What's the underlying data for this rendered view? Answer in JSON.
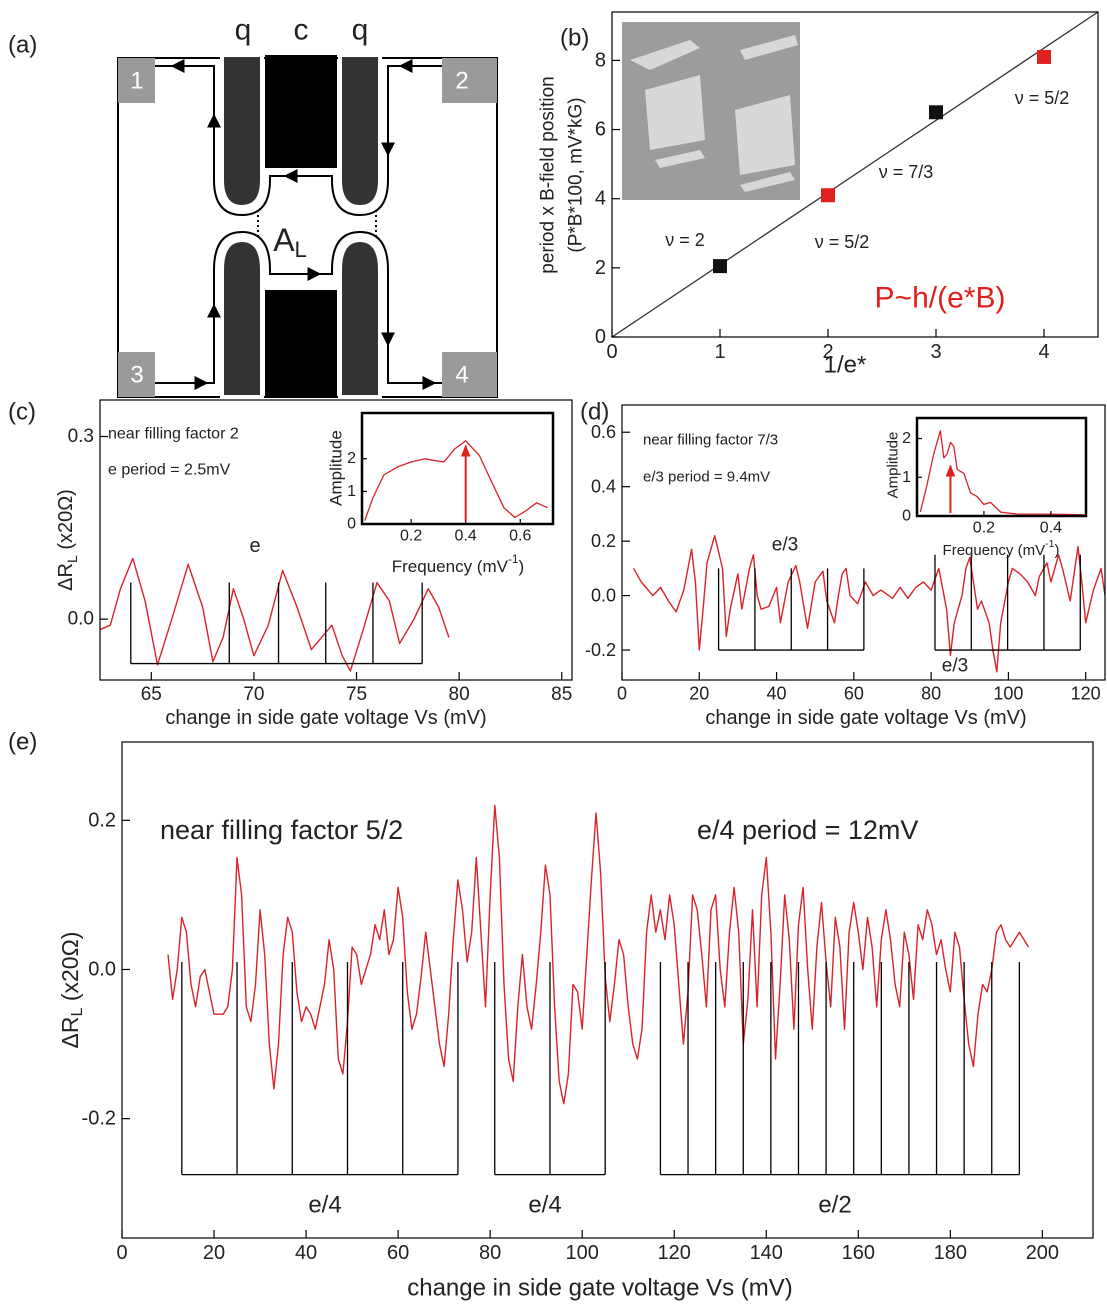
{
  "diagram": {
    "panel": "(a)",
    "labels": [
      "q",
      "c",
      "q"
    ],
    "contacts": [
      "1",
      "2",
      "3",
      "4"
    ],
    "region": {
      "main": "A",
      "sub": "L"
    }
  },
  "chart_data": [
    {
      "type": "scatter",
      "panel": "(b)",
      "xlabel": "1/e*",
      "ylabel": [
        "period x B-field position",
        "(P*B*100, mV*kG)"
      ],
      "x": [
        1,
        2,
        3,
        4
      ],
      "values": [
        2.05,
        4.1,
        6.5,
        8.1
      ],
      "point_colors": [
        "#111111",
        "#e0201c",
        "#111111",
        "#e0201c"
      ],
      "point_labels": [
        "ν = 2",
        "ν = 5/2",
        "ν = 7/3",
        "ν = 5/2"
      ],
      "fit": {
        "x": [
          0,
          4.5
        ],
        "values": [
          0,
          9.4
        ],
        "color": "#333333"
      },
      "notes": [
        "P~h/(e*B)"
      ],
      "note_color": "#e0201c",
      "xlim": [
        0,
        4.5
      ],
      "ylim": [
        0,
        9.4
      ],
      "xticks": [
        0,
        1,
        2,
        3,
        4
      ],
      "yticks": [
        0,
        2,
        4,
        6,
        8
      ]
    },
    {
      "type": "line",
      "panel": "(c)",
      "xlabel": "change in side gate voltage Vs (mV)",
      "ylabel": {
        "main": "ΔR",
        "sub": "L",
        "rest": " (x20Ω)"
      },
      "notes": [
        "near filling factor 2",
        "e period = 2.5mV"
      ],
      "x": [
        62.3,
        63.0,
        63.5,
        64.1,
        64.7,
        65.3,
        66.0,
        66.8,
        67.5,
        68.0,
        68.5,
        69.0,
        69.5,
        70.0,
        70.7,
        71.4,
        72.1,
        72.8,
        73.3,
        73.8,
        74.3,
        74.7,
        75.3,
        76.0,
        76.6,
        77.1,
        77.8,
        78.5,
        79.0,
        79.5
      ],
      "series": [
        {
          "color": "#d8232a",
          "values": [
            -0.02,
            -0.01,
            0.05,
            0.1,
            0.03,
            -0.075,
            0.0,
            0.09,
            0.02,
            -0.07,
            -0.03,
            0.05,
            0.0,
            -0.06,
            -0.01,
            0.08,
            0.02,
            -0.05,
            -0.03,
            -0.01,
            -0.06,
            -0.085,
            -0.02,
            0.06,
            0.03,
            -0.04,
            0.0,
            0.05,
            0.02,
            -0.03
          ]
        }
      ],
      "groups": [
        {
          "label": "e",
          "positions": [
            64.0,
            68.8,
            71.2,
            73.5,
            75.8,
            78.2
          ],
          "bottom": -0.073,
          "top": 0.06
        }
      ],
      "xlim": [
        62.5,
        85.5
      ],
      "ylim": [
        -0.1,
        0.36
      ],
      "xticks": [
        65,
        70,
        75,
        80,
        85
      ],
      "yticks": [
        {
          "value": 0,
          "label": "0.0"
        },
        0.3
      ]
    },
    {
      "type": "line",
      "xlabel": {
        "main": "Frequency (mV",
        "sup": "-1",
        "rest": ")"
      },
      "ylabel": "Amplitude",
      "x": [
        0.03,
        0.06,
        0.1,
        0.15,
        0.2,
        0.25,
        0.28,
        0.32,
        0.36,
        0.4,
        0.45,
        0.5,
        0.54,
        0.58,
        0.62,
        0.66,
        0.7
      ],
      "series": [
        {
          "color": "#d8232a",
          "values": [
            0.1,
            0.8,
            1.5,
            1.75,
            1.9,
            2.0,
            1.95,
            1.9,
            2.3,
            2.55,
            2.1,
            1.2,
            0.5,
            0.2,
            0.4,
            0.65,
            0.5
          ]
        }
      ],
      "arrow": [
        0.4,
        2.4
      ],
      "arrow_color": "#e0201c",
      "xlim": [
        0.02,
        0.72
      ],
      "ylim": [
        0,
        3.4
      ],
      "xticks": [
        0.2,
        0.4,
        0.6
      ],
      "yticks": [
        0,
        1,
        2
      ]
    },
    {
      "type": "line",
      "panel": "(d)",
      "xlabel": "change in side gate voltage Vs (mV)",
      "notes": [
        "near filling factor 7/3",
        "e/3 period = 9.4mV"
      ],
      "x": [
        3,
        5,
        8,
        10,
        12,
        14,
        16,
        18,
        19,
        20,
        21,
        22,
        24,
        26,
        27,
        28,
        30,
        31,
        33,
        34,
        35,
        36,
        38,
        40,
        41,
        43,
        45,
        46,
        48,
        50,
        52,
        53,
        55,
        56,
        57,
        58,
        59,
        61,
        63,
        65,
        67,
        70,
        72,
        74,
        76,
        78,
        80,
        82,
        84,
        85,
        86,
        88,
        89,
        90,
        92,
        93,
        95,
        96,
        97,
        98,
        100,
        101,
        103,
        105,
        107,
        108,
        110,
        111,
        113,
        114,
        116,
        118,
        119,
        120,
        122,
        124,
        125
      ],
      "series": [
        {
          "color": "#d8232a",
          "values": [
            0.1,
            0.05,
            0.0,
            0.03,
            -0.02,
            -0.06,
            0.02,
            0.17,
            0.05,
            -0.2,
            -0.05,
            0.12,
            0.22,
            0.1,
            -0.15,
            -0.05,
            0.08,
            -0.05,
            0.1,
            0.15,
            0.0,
            -0.05,
            -0.04,
            0.03,
            -0.1,
            0.05,
            0.11,
            0.05,
            -0.12,
            0.05,
            0.09,
            -0.02,
            -0.1,
            0.0,
            0.08,
            0.1,
            0.0,
            -0.03,
            0.05,
            0.0,
            0.02,
            -0.01,
            0.03,
            -0.01,
            0.03,
            0.05,
            0.02,
            0.1,
            -0.05,
            -0.22,
            -0.1,
            0.0,
            0.1,
            0.14,
            -0.05,
            -0.02,
            -0.1,
            -0.2,
            -0.28,
            -0.1,
            0.05,
            0.1,
            0.08,
            0.05,
            0.0,
            0.07,
            0.12,
            0.05,
            0.15,
            0.1,
            -0.02,
            0.18,
            0.05,
            -0.1,
            0.02,
            0.1,
            0.0
          ]
        }
      ],
      "groups": [
        {
          "label": "e/3",
          "positions": [
            25,
            34.4,
            43.8,
            53.2,
            62.6
          ],
          "bottom": -0.2,
          "top": 0.1
        },
        {
          "label": "e/3",
          "positions": [
            81,
            90.4,
            99.8,
            109.2,
            118.6
          ],
          "bottom": -0.2,
          "top": 0.15
        }
      ],
      "xlim": [
        0,
        125
      ],
      "ylim": [
        -0.31,
        0.7
      ],
      "xticks": [
        0,
        20,
        40,
        60,
        80,
        100,
        120
      ],
      "yticks": [
        -0.2,
        {
          "value": 0,
          "label": "0.0"
        },
        0.2,
        0.4,
        0.6
      ]
    },
    {
      "type": "line",
      "xlabel": {
        "main": "Frequency (mV",
        "sup": "-1",
        "rest": ")"
      },
      "ylabel": "Amplitude",
      "x": [
        0.01,
        0.03,
        0.05,
        0.07,
        0.08,
        0.09,
        0.1,
        0.11,
        0.12,
        0.14,
        0.16,
        0.18,
        0.2,
        0.22,
        0.25,
        0.3,
        0.4,
        0.5
      ],
      "series": [
        {
          "color": "#d8232a",
          "values": [
            0.1,
            0.8,
            1.6,
            2.2,
            1.5,
            1.6,
            1.9,
            1.8,
            1.2,
            1.1,
            0.6,
            0.5,
            0.3,
            0.35,
            0.1,
            0.05,
            0.05,
            0.03
          ]
        }
      ],
      "arrow": [
        0.1,
        1.3
      ],
      "arrow_color": "#e0201c",
      "xlim": [
        0,
        0.505
      ],
      "ylim": [
        0,
        2.53
      ],
      "xticks": [
        0.2,
        0.4
      ],
      "yticks": [
        0,
        1,
        2
      ]
    },
    {
      "type": "line",
      "panel": "(e)",
      "xlabel": "change in side gate voltage Vs (mV)",
      "ylabel": {
        "main": "ΔR",
        "sub": "L",
        "rest": " (x20Ω)"
      },
      "notes": [
        "near filling factor 5/2",
        "e/4 period = 12mV"
      ],
      "x": [
        10,
        11,
        12,
        13,
        14,
        15,
        16,
        17,
        18,
        19,
        20,
        21,
        22,
        23,
        24,
        25,
        26,
        27,
        28,
        29,
        30,
        31,
        32,
        33,
        34,
        35,
        36,
        37,
        38,
        39,
        40,
        41,
        42,
        43,
        44,
        45,
        46,
        47,
        48,
        49,
        50,
        51,
        52,
        53,
        54,
        55,
        56,
        57,
        58,
        59,
        60,
        61,
        62,
        63,
        64,
        65,
        66,
        67,
        68,
        69,
        70,
        71,
        72,
        73,
        74,
        75,
        76,
        77,
        78,
        79,
        80,
        81,
        82,
        83,
        84,
        85,
        86,
        87,
        88,
        89,
        90,
        91,
        92,
        93,
        94,
        95,
        96,
        97,
        98,
        99,
        100,
        101,
        102,
        103,
        104,
        105,
        106,
        107,
        108,
        109,
        110,
        111,
        112,
        113,
        114,
        115,
        116,
        117,
        118,
        119,
        120,
        121,
        122,
        123,
        124,
        125,
        126,
        127,
        128,
        129,
        130,
        131,
        132,
        133,
        134,
        135,
        136,
        137,
        138,
        139,
        140,
        141,
        142,
        143,
        144,
        145,
        146,
        147,
        148,
        149,
        150,
        151,
        152,
        153,
        154,
        155,
        156,
        157,
        158,
        159,
        160,
        161,
        162,
        163,
        164,
        165,
        166,
        167,
        168,
        169,
        170,
        171,
        172,
        173,
        174,
        175,
        176,
        177,
        178,
        179,
        180,
        181,
        182,
        183,
        184,
        185,
        186,
        187,
        188,
        189,
        190,
        191,
        192,
        193,
        194,
        195,
        196,
        197
      ],
      "series": [
        {
          "color": "#d8232a",
          "values": [
            0.02,
            -0.04,
            0.0,
            0.07,
            0.05,
            -0.02,
            -0.05,
            -0.01,
            0.0,
            -0.03,
            -0.06,
            -0.06,
            -0.06,
            -0.05,
            0.0,
            0.15,
            0.1,
            -0.05,
            -0.07,
            -0.02,
            0.08,
            0.02,
            -0.1,
            -0.16,
            -0.1,
            0.02,
            0.07,
            0.05,
            -0.03,
            -0.07,
            -0.05,
            -0.06,
            -0.08,
            -0.05,
            -0.02,
            0.04,
            0.0,
            -0.12,
            -0.14,
            -0.07,
            0.03,
            0.02,
            -0.02,
            0.0,
            0.02,
            0.06,
            0.04,
            0.08,
            0.02,
            0.04,
            0.11,
            0.07,
            -0.03,
            -0.08,
            -0.06,
            -0.01,
            0.05,
            0.0,
            -0.05,
            -0.1,
            -0.13,
            -0.06,
            0.04,
            0.12,
            0.08,
            0.01,
            0.05,
            0.15,
            0.05,
            -0.05,
            0.1,
            0.22,
            0.15,
            -0.02,
            -0.12,
            -0.15,
            -0.05,
            0.02,
            -0.05,
            -0.08,
            -0.02,
            0.05,
            0.14,
            0.1,
            -0.05,
            -0.15,
            -0.18,
            -0.14,
            -0.02,
            -0.03,
            -0.08,
            0.02,
            0.12,
            0.21,
            0.13,
            -0.01,
            -0.07,
            -0.02,
            0.04,
            0.02,
            -0.05,
            -0.1,
            -0.12,
            -0.08,
            0.05,
            0.1,
            0.05,
            0.08,
            0.04,
            0.1,
            0.06,
            -0.02,
            -0.1,
            -0.03,
            0.1,
            0.08,
            0.02,
            -0.05,
            0.08,
            0.1,
            0.0,
            -0.05,
            0.05,
            0.11,
            0.05,
            -0.1,
            -0.04,
            0.08,
            -0.05,
            0.1,
            0.15,
            0.05,
            -0.12,
            -0.02,
            0.1,
            0.04,
            -0.08,
            0.06,
            0.11,
            0.0,
            -0.08,
            0.03,
            0.09,
            0.01,
            -0.05,
            0.07,
            0.03,
            -0.08,
            0.05,
            0.09,
            0.05,
            0.0,
            0.07,
            0.03,
            -0.05,
            0.04,
            0.08,
            0.04,
            -0.02,
            -0.05,
            0.05,
            0.02,
            -0.04,
            0.06,
            0.04,
            0.08,
            0.06,
            0.02,
            0.04,
            0.0,
            -0.03,
            0.05,
            0.03,
            -0.04,
            -0.1,
            -0.13,
            -0.06,
            -0.02,
            -0.03,
            0.0,
            0.05,
            0.06,
            0.04,
            0.03,
            0.04,
            0.05,
            0.04,
            0.03
          ]
        }
      ],
      "groups": [
        {
          "label": "e/4",
          "positions": [
            13,
            25,
            37,
            49,
            61,
            73
          ],
          "bottom": -0.275,
          "top": 0.01
        },
        {
          "label": "e/4",
          "positions": [
            81,
            93,
            105
          ],
          "bottom": -0.275,
          "top": 0.01
        },
        {
          "label": "e/2",
          "positions": [
            117,
            123,
            129,
            135,
            141,
            147,
            153,
            159,
            165,
            171,
            177,
            183,
            189,
            195
          ],
          "bottom": -0.275,
          "top": 0.01
        }
      ],
      "xlim": [
        0,
        211
      ],
      "ylim": [
        -0.36,
        0.305
      ],
      "xticks": [
        0,
        20,
        40,
        60,
        80,
        100,
        120,
        140,
        160,
        180,
        200
      ],
      "yticks": [
        -0.2,
        {
          "value": 0,
          "label": "0.0"
        },
        0.2
      ]
    }
  ]
}
